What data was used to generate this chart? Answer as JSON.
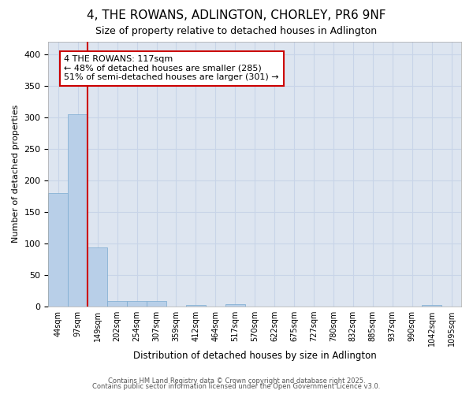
{
  "title1": "4, THE ROWANS, ADLINGTON, CHORLEY, PR6 9NF",
  "title2": "Size of property relative to detached houses in Adlington",
  "xlabel": "Distribution of detached houses by size in Adlington",
  "ylabel": "Number of detached properties",
  "bin_labels": [
    "44sqm",
    "97sqm",
    "149sqm",
    "202sqm",
    "254sqm",
    "307sqm",
    "359sqm",
    "412sqm",
    "464sqm",
    "517sqm",
    "570sqm",
    "622sqm",
    "675sqm",
    "727sqm",
    "780sqm",
    "832sqm",
    "885sqm",
    "937sqm",
    "990sqm",
    "1042sqm",
    "1095sqm"
  ],
  "bar_heights": [
    180,
    305,
    93,
    8,
    8,
    9,
    0,
    2,
    0,
    3,
    0,
    0,
    0,
    0,
    0,
    0,
    0,
    0,
    0,
    2,
    0
  ],
  "bar_color": "#b8cfe8",
  "bar_edge_color": "#7aaad0",
  "property_line_bin": 1.5,
  "property_line_color": "#cc0000",
  "annotation_text": "4 THE ROWANS: 117sqm\n← 48% of detached houses are smaller (285)\n51% of semi-detached houses are larger (301) →",
  "annotation_box_color": "#cc0000",
  "ylim": [
    0,
    420
  ],
  "yticks": [
    0,
    50,
    100,
    150,
    200,
    250,
    300,
    350,
    400
  ],
  "grid_color": "#c8d4e8",
  "background_color": "#dde5f0",
  "footer1": "Contains HM Land Registry data © Crown copyright and database right 2025.",
  "footer2": "Contains public sector information licensed under the Open Government Licence v3.0."
}
